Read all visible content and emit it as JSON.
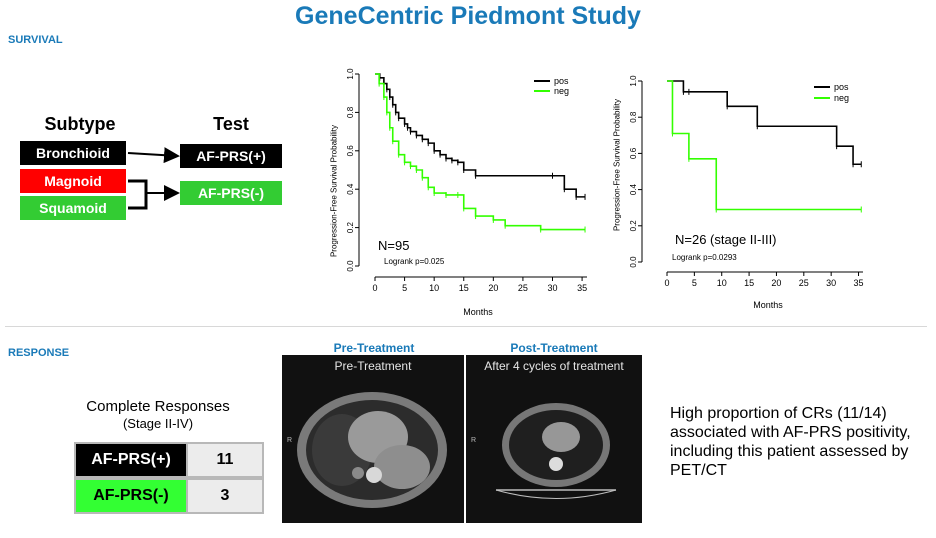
{
  "title": "GeneCentric Piedmont Study",
  "sections": {
    "survival": "SURVIVAL",
    "response": "RESPONSE"
  },
  "classification": {
    "subtype_header": "Subtype",
    "test_header": "Test",
    "subtypes": [
      {
        "label": "Bronchioid",
        "color": "#000000"
      },
      {
        "label": "Magnoid",
        "color": "#ff0000"
      },
      {
        "label": "Squamoid",
        "color": "#33cc33"
      }
    ],
    "tests": [
      {
        "label": "AF-PRS(+)",
        "color": "#000000"
      },
      {
        "label": "AF-PRS(-)",
        "color": "#33cc33"
      }
    ]
  },
  "chart_data": [
    {
      "type": "line",
      "chart_kind": "kaplan-meier",
      "xlabel": "Months",
      "ylabel": "Progression-Free Survival Probability",
      "xlim": [
        0,
        36
      ],
      "ylim": [
        0,
        1
      ],
      "xticks": [
        0,
        5,
        10,
        15,
        20,
        25,
        30,
        35
      ],
      "yticks": [
        "0.0",
        "0.2",
        "0.4",
        "0.6",
        "0.8",
        "1.0"
      ],
      "annotation": "N=95",
      "pvalue": "Logrank p=0.025",
      "legend_position": "top-right",
      "series": [
        {
          "name": "pos",
          "color": "#000000",
          "x": [
            0,
            0.8,
            1.5,
            2,
            2.5,
            3,
            3.5,
            4,
            5,
            5.5,
            6,
            7,
            8,
            9,
            10,
            11,
            12,
            13,
            14,
            15,
            17,
            30,
            32,
            34,
            35.5
          ],
          "y": [
            1.0,
            0.98,
            0.95,
            0.92,
            0.88,
            0.84,
            0.8,
            0.77,
            0.74,
            0.72,
            0.7,
            0.68,
            0.66,
            0.64,
            0.6,
            0.58,
            0.56,
            0.55,
            0.54,
            0.5,
            0.47,
            0.47,
            0.4,
            0.36,
            0.36
          ]
        },
        {
          "name": "neg",
          "color": "#33ff00",
          "x": [
            0,
            0.7,
            1.5,
            2,
            2.5,
            3,
            4,
            5,
            6,
            7,
            8,
            9,
            10,
            12,
            14,
            15,
            17,
            20,
            22,
            28,
            35.5
          ],
          "y": [
            1.0,
            0.95,
            0.88,
            0.8,
            0.72,
            0.65,
            0.58,
            0.54,
            0.52,
            0.5,
            0.46,
            0.41,
            0.38,
            0.37,
            0.37,
            0.3,
            0.26,
            0.24,
            0.21,
            0.19,
            0.19
          ]
        }
      ]
    },
    {
      "type": "line",
      "chart_kind": "kaplan-meier",
      "xlabel": "Months",
      "ylabel": "Progression-Free Survival Probability",
      "xlim": [
        0,
        36
      ],
      "ylim": [
        0,
        1
      ],
      "xticks": [
        0,
        5,
        10,
        15,
        20,
        25,
        30,
        35
      ],
      "yticks": [
        "0.0",
        "0.2",
        "0.4",
        "0.6",
        "0.8",
        "1.0"
      ],
      "annotation": "N=26 (stage II-III)",
      "pvalue": "Logrank p=0.0293",
      "legend_position": "top-right",
      "series": [
        {
          "name": "pos",
          "color": "#000000",
          "x": [
            0,
            3,
            4,
            11,
            16.5,
            31,
            34,
            35.5
          ],
          "y": [
            1.0,
            0.94,
            0.94,
            0.86,
            0.75,
            0.64,
            0.54,
            0.54
          ]
        },
        {
          "name": "neg",
          "color": "#33ff00",
          "x": [
            0,
            1,
            4,
            9,
            35.5
          ],
          "y": [
            1.0,
            0.71,
            0.57,
            0.29,
            0.29
          ]
        }
      ]
    }
  ],
  "images": {
    "pre_label": "Pre-Treatment",
    "pre_caption": "Pre-Treatment",
    "post_label": "Post-Treatment",
    "post_caption": "After 4 cycles of treatment"
  },
  "complete_responses": {
    "title": "Complete Responses",
    "subtitle": "(Stage II-IV)",
    "rows": [
      {
        "label": "AF-PRS(+)",
        "value": "11",
        "color": "#000000"
      },
      {
        "label": "AF-PRS(-)",
        "value": "3",
        "color": "#33ff33"
      }
    ]
  },
  "note": "High proportion of CRs (11/14) associated with AF-PRS positivity, including this patient assessed by PET/CT"
}
